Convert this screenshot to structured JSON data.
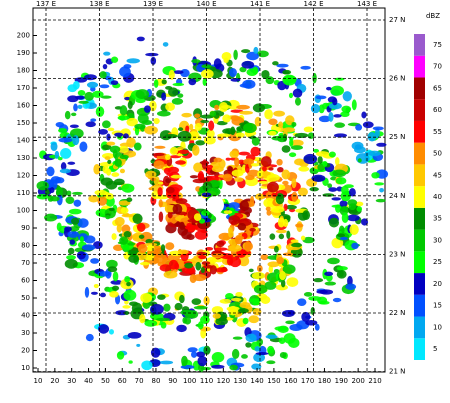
{
  "map": {
    "x_ticks": [
      10,
      20,
      30,
      40,
      50,
      60,
      70,
      80,
      90,
      100,
      110,
      120,
      130,
      140,
      150,
      160,
      170,
      180,
      190,
      200,
      210
    ],
    "y_ticks": [
      10,
      20,
      30,
      40,
      50,
      60,
      70,
      80,
      90,
      100,
      110,
      120,
      130,
      140,
      150,
      160,
      170,
      180,
      190,
      200
    ],
    "lon_labels": [
      "137 E",
      "138 E",
      "139 E",
      "140 E",
      "141 E",
      "142 E",
      "143 E"
    ],
    "lat_labels": [
      "27 N",
      "26 N",
      "25 N",
      "24 N",
      "23 N",
      "22 N",
      "21 N"
    ],
    "colorbar": {
      "unit": "dBZ",
      "ticks": [
        5,
        10,
        15,
        20,
        25,
        30,
        35,
        40,
        45,
        50,
        55,
        60,
        65,
        70,
        75
      ],
      "colors": [
        "#00e8ff",
        "#00a8f0",
        "#0050ff",
        "#0000c0",
        "#00ff00",
        "#00c800",
        "#008c00",
        "#ffff00",
        "#ffc800",
        "#ff8c00",
        "#ff0000",
        "#c80000",
        "#a00000",
        "#ff00ff",
        "#9a5acd"
      ]
    }
  }
}
